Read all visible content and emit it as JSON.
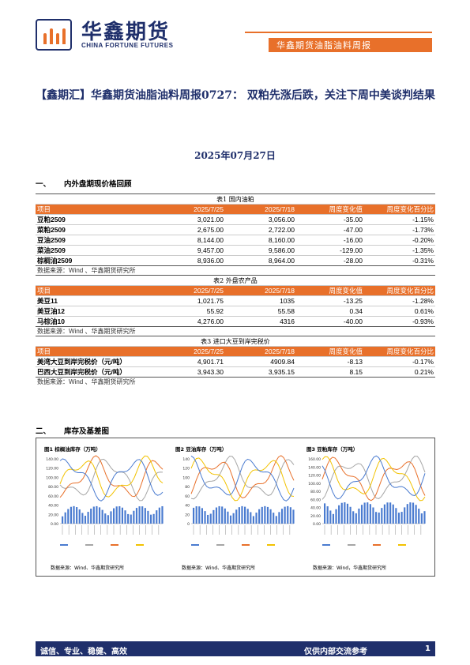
{
  "header": {
    "logo_cn": "华鑫期货",
    "logo_en": "CHINA FORTUNE FUTURES",
    "tag": "华鑫期货油脂油料周报"
  },
  "title": "【鑫期汇】华鑫期货油脂油料周报0727： 双粕先涨后跌，关注下周中美谈判结果",
  "date": "2025年07月27日",
  "section1": {
    "num": "一、",
    "label": "内外盘期现价格回顾"
  },
  "section2": {
    "num": "二、",
    "label": "库存及基差图"
  },
  "headers": [
    "项目",
    "2025/7/25",
    "2025/7/18",
    "周度变化值",
    "周度变化百分比"
  ],
  "table1": {
    "caption": "表1 国内油粕",
    "rows": [
      [
        "豆粕2509",
        "3,021.00",
        "3,056.00",
        "-35.00",
        "-1.15%"
      ],
      [
        "菜粕2509",
        "2,675.00",
        "2,722.00",
        "-47.00",
        "-1.73%"
      ],
      [
        "豆油2509",
        "8,144.00",
        "8,160.00",
        "-16.00",
        "-0.20%"
      ],
      [
        "菜油2509",
        "9,457.00",
        "9,586.00",
        "-129.00",
        "-1.35%"
      ],
      [
        "棕榈油2509",
        "8,936.00",
        "8,964.00",
        "-28.00",
        "-0.31%"
      ]
    ],
    "source": "数据来源：Wind 、华鑫期货研究所"
  },
  "table2": {
    "caption": "表2 外盘农产品",
    "rows": [
      [
        "美豆11",
        "1,021.75",
        "1035",
        "-13.25",
        "-1.28%"
      ],
      [
        "美豆油12",
        "55.92",
        "55.58",
        "0.34",
        "0.61%"
      ],
      [
        "马棕油10",
        "4,276.00",
        "4316",
        "-40.00",
        "-0.93%"
      ]
    ],
    "source": "数据来源：Wind 、华鑫期货研究所"
  },
  "table3": {
    "caption": "表3 进口大豆到岸完税价",
    "rows": [
      [
        "美湾大豆到岸完税价（元/吨）",
        "4,901.71",
        "4909.84",
        "-8.13",
        "-0.17%"
      ],
      [
        "巴西大豆到岸完税价（元/吨）",
        "3,943.30",
        "3,935.15",
        "8.15",
        "0.21%"
      ]
    ],
    "source": "数据来源：Wind 、华鑫期货研究所"
  },
  "charts": [
    {
      "title": "图1 棕榈油库存（万吨）",
      "source": "数据来源：Wind、华鑫期货研究所",
      "yticks": [
        "140.00",
        "120.00",
        "100.00",
        "80.00",
        "60.00",
        "40.00",
        "20.00",
        "0.00"
      ]
    },
    {
      "title": "图2 豆油库存（万吨）",
      "source": "数据来源：Wind、华鑫期货研究所",
      "yticks": [
        "140",
        "120",
        "100",
        "80",
        "60",
        "40",
        "20",
        "0"
      ]
    },
    {
      "title": "图3 豆粕库存（万吨）",
      "source": "数据来源：Wind，华鑫期货研究所",
      "yticks": [
        "160.00",
        "140.00",
        "120.00",
        "100.00",
        "80.00",
        "60.00",
        "40.00",
        "20.00",
        "0.00"
      ]
    }
  ],
  "colors": {
    "navy": "#1f2f6b",
    "orange": "#e8702a",
    "bar": "#4a7bd0",
    "grey": "#a6a6a6",
    "yellow": "#f2c200"
  },
  "footer": {
    "left": "诚信、专业、稳健、高效",
    "right": "仅供内部交流参考",
    "page": "1"
  }
}
